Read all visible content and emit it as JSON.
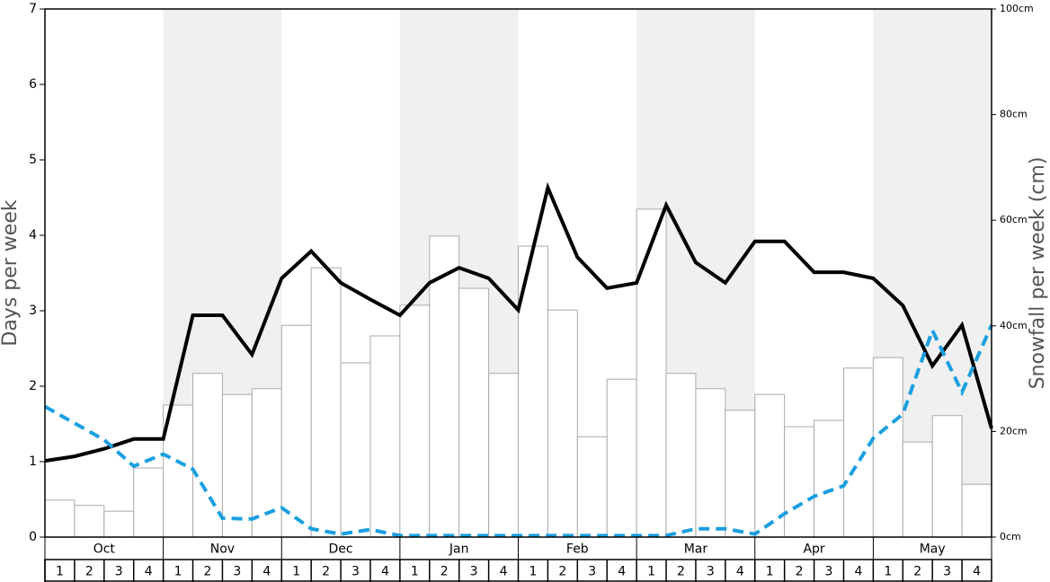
{
  "chart_data": {
    "type": "bar",
    "ylabel": "Days per week",
    "y2label": "Snowfall per week (cm)",
    "months": [
      "Oct",
      "Nov",
      "Dec",
      "Jan",
      "Feb",
      "Mar",
      "Apr",
      "May"
    ],
    "categories": [
      "1",
      "2",
      "3",
      "4",
      "1",
      "2",
      "3",
      "4",
      "1",
      "2",
      "3",
      "4",
      "1",
      "2",
      "3",
      "4",
      "1",
      "2",
      "3",
      "4",
      "1",
      "2",
      "3",
      "4",
      "1",
      "2",
      "3",
      "4",
      "1",
      "2",
      "3",
      "4"
    ],
    "ylim": [
      0,
      7
    ],
    "yticks": [
      0,
      1,
      2,
      3,
      4,
      5,
      6,
      7
    ],
    "y2lim": [
      0,
      100
    ],
    "y2ticks": [
      {
        "value": 0,
        "label": "0cm"
      },
      {
        "value": 20,
        "label": "20cm"
      },
      {
        "value": 40,
        "label": "40cm"
      },
      {
        "value": 60,
        "label": "60cm"
      },
      {
        "value": 80,
        "label": "80cm"
      },
      {
        "value": 100,
        "label": "100cm"
      }
    ],
    "band_color": "#f0f0f0",
    "bars": {
      "axis": "y2",
      "color": "#ffffff",
      "edge": "#aaaaaa",
      "values": [
        7.0,
        6.0,
        4.9,
        13.1,
        25.0,
        31.0,
        27.0,
        28.1,
        40.1,
        51.0,
        33.0,
        38.1,
        43.9,
        57.0,
        47.1,
        31.0,
        55.1,
        43.0,
        19.0,
        29.9,
        62.1,
        31.0,
        28.1,
        24.0,
        27.0,
        20.9,
        22.1,
        32.0,
        34.0,
        18.0,
        23.0,
        10.0
      ]
    },
    "lines": {
      "type": "line",
      "x": [
        0,
        1,
        2,
        3,
        4,
        5,
        6,
        7,
        8,
        9,
        10,
        11,
        12,
        13,
        14,
        15,
        16,
        17,
        18,
        19,
        20,
        21,
        22,
        23,
        24,
        25,
        26,
        27,
        28,
        29,
        30,
        31,
        32
      ],
      "xlim": [
        0,
        32
      ],
      "series": [
        {
          "color": "#000000",
          "dashed": false,
          "values": [
            1.01,
            1.07,
            1.17,
            1.3,
            1.3,
            2.94,
            2.94,
            2.42,
            3.43,
            3.79,
            3.37,
            3.15,
            2.94,
            3.37,
            3.57,
            3.43,
            3.01,
            4.63,
            3.71,
            3.3,
            3.37,
            4.4,
            3.64,
            3.37,
            3.92,
            3.92,
            3.51,
            3.51,
            3.43,
            3.07,
            2.27,
            2.81,
            1.44
          ]
        },
        {
          "color": "#1a9fe0",
          "dashed": true,
          "values": [
            1.73,
            1.51,
            1.29,
            0.94,
            1.1,
            0.9,
            0.25,
            0.24,
            0.39,
            0.11,
            0.04,
            0.1,
            0.02,
            0.02,
            0.02,
            0.02,
            0.02,
            0.02,
            0.02,
            0.02,
            0.02,
            0.02,
            0.11,
            0.11,
            0.04,
            0.31,
            0.54,
            0.68,
            1.31,
            1.63,
            2.74,
            1.92,
            2.81
          ]
        }
      ]
    }
  }
}
